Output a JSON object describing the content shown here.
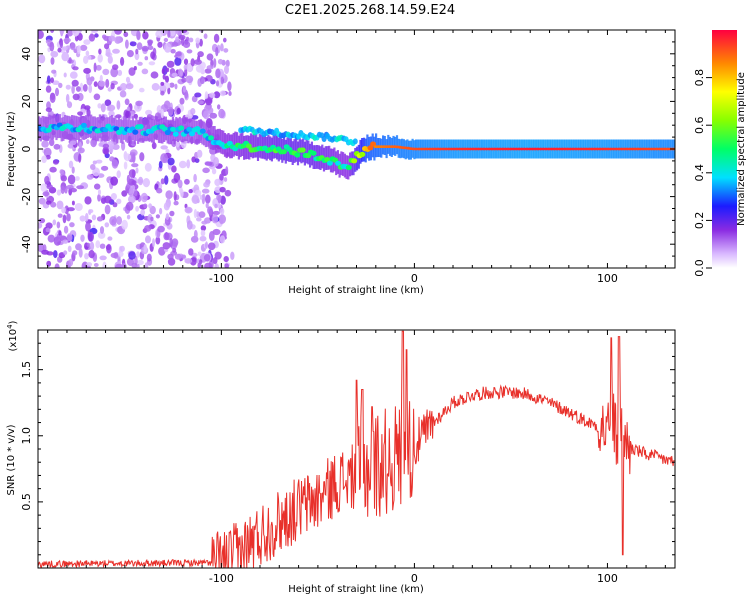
{
  "title": "C2E1.2025.268.14.59.E24",
  "chart_data": [
    {
      "type": "heatmap",
      "xlabel": "Height of straight line (km)",
      "ylabel": "Frequency (Hz)",
      "xlim": [
        -195,
        135
      ],
      "ylim": [
        -50,
        50
      ],
      "xticks": [
        -100,
        0,
        100
      ],
      "yticks": [
        -40,
        -20,
        0,
        20,
        40
      ],
      "colorbar": {
        "label": "Normalized spectral amplitude",
        "range": [
          0,
          1
        ],
        "ticks": [
          "0.0",
          "0.2",
          "0.4",
          "0.6",
          "0.8"
        ],
        "tick_values": [
          0.0,
          0.2,
          0.4,
          0.6,
          0.8
        ]
      },
      "features": {
        "noise_region_x": [
          -195,
          -100
        ],
        "noise_amplitude": 0.12,
        "ridge": [
          {
            "x": -190,
            "freq": 9,
            "amp": 0.38
          },
          {
            "x": -170,
            "freq": 9,
            "amp": 0.38
          },
          {
            "x": -150,
            "freq": 8,
            "amp": 0.36
          },
          {
            "x": -130,
            "freq": 8,
            "amp": 0.4
          },
          {
            "x": -110,
            "freq": 7,
            "amp": 0.38
          },
          {
            "x": -100,
            "freq": 2,
            "amp": 0.45
          },
          {
            "x": -85,
            "freq": 1,
            "amp": 0.5
          },
          {
            "x": -70,
            "freq": 0,
            "amp": 0.55
          },
          {
            "x": -55,
            "freq": -2,
            "amp": 0.55
          },
          {
            "x": -45,
            "freq": -4,
            "amp": 0.5
          },
          {
            "x": -35,
            "freq": -8,
            "amp": 0.45
          },
          {
            "x": -25,
            "freq": 1,
            "amp": 0.85
          },
          {
            "x": -10,
            "freq": 1,
            "amp": 0.9
          },
          {
            "x": 0,
            "freq": 0,
            "amp": 0.92
          },
          {
            "x": 20,
            "freq": 0,
            "amp": 0.95
          },
          {
            "x": 60,
            "freq": 0,
            "amp": 0.97
          },
          {
            "x": 100,
            "freq": 0,
            "amp": 0.95
          },
          {
            "x": 135,
            "freq": 0,
            "amp": 0.92
          }
        ],
        "upper_branch": [
          {
            "x": -90,
            "freq": 8
          },
          {
            "x": -75,
            "freq": 7
          },
          {
            "x": -60,
            "freq": 6
          },
          {
            "x": -45,
            "freq": 5
          },
          {
            "x": -30,
            "freq": 3
          }
        ]
      }
    },
    {
      "type": "line",
      "color": "#e8302a",
      "xlabel": "Height of straight line (km)",
      "ylabel": "SNR (10 * v/v)",
      "scale_label": "(x10",
      "scale_exponent": "4",
      "scale_suffix": ")",
      "xlim": [
        -195,
        135
      ],
      "ylim": [
        0,
        18000
      ],
      "xticks": [
        -100,
        0,
        100
      ],
      "yticks": [
        5000,
        10000,
        15000
      ],
      "ytick_labels": [
        "0.5",
        "1.0",
        "1.5"
      ],
      "x": [
        -195,
        -150,
        -100,
        -90,
        -80,
        -70,
        -60,
        -50,
        -40,
        -30,
        -25,
        -20,
        -10,
        -5,
        0,
        10,
        20,
        30,
        40,
        50,
        60,
        70,
        80,
        90,
        95,
        100,
        103,
        105,
        107,
        110,
        120,
        130,
        135
      ],
      "values": [
        300,
        350,
        400,
        1200,
        2500,
        3500,
        4500,
        5200,
        6500,
        7000,
        7500,
        7800,
        8300,
        8800,
        9200,
        11000,
        12500,
        13100,
        13300,
        13300,
        13100,
        12500,
        11800,
        11000,
        10800,
        10500,
        11000,
        9500,
        11500,
        9200,
        8600,
        8200,
        8000
      ],
      "spikes": [
        {
          "x": -30,
          "value": 14200
        },
        {
          "x": -27,
          "value": 13500
        },
        {
          "x": -22,
          "value": 12200
        },
        {
          "x": -6,
          "value": 17900
        },
        {
          "x": -4,
          "value": 16500
        },
        {
          "x": 102,
          "value": 17400
        },
        {
          "x": 106,
          "value": 17500
        },
        {
          "x": 108,
          "value": 1000
        }
      ]
    }
  ]
}
